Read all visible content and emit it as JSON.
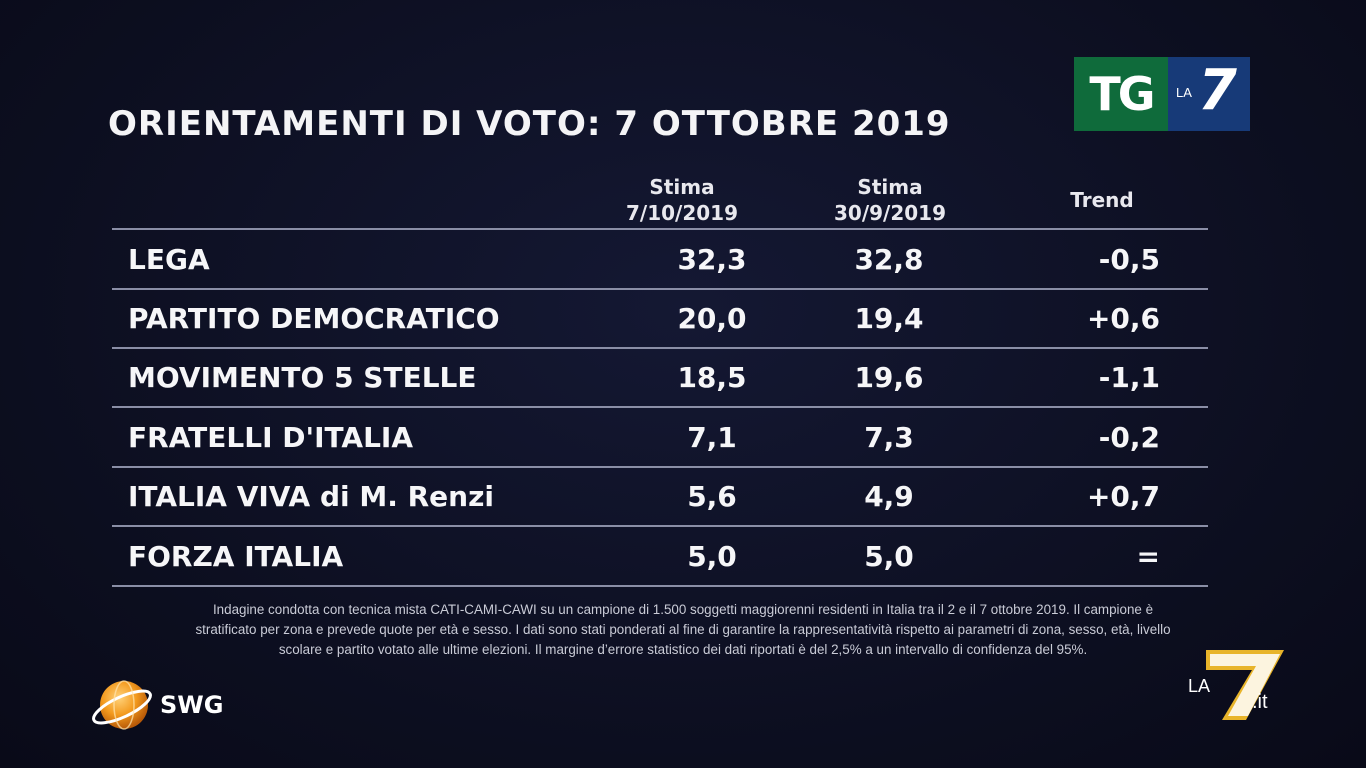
{
  "title": "ORIENTAMENTI DI VOTO: 7 OTTOBRE 2019",
  "logo": {
    "tg_text": "TG",
    "la_text": "LA",
    "seven_text": "7",
    "colors": {
      "tg_green": "#0f6b3b",
      "la7_blue": "#173a78"
    }
  },
  "chart_data": {
    "type": "table",
    "columns": [
      {
        "line1": "Stima",
        "line2": "7/10/2019"
      },
      {
        "line1": "Stima",
        "line2": "30/9/2019"
      },
      {
        "line1": "Trend",
        "line2": ""
      }
    ],
    "rows": [
      {
        "party": "LEGA",
        "v1": "32,3",
        "v2": "32,8",
        "trend": "-0,5"
      },
      {
        "party": "PARTITO DEMOCRATICO",
        "v1": "20,0",
        "v2": "19,4",
        "trend": "+0,6"
      },
      {
        "party": "MOVIMENTO 5 STELLE",
        "v1": "18,5",
        "v2": "19,6",
        "trend": "-1,1"
      },
      {
        "party": "FRATELLI D'ITALIA",
        "v1": "7,1",
        "v2": "7,3",
        "trend": "-0,2"
      },
      {
        "party": "ITALIA VIVA di M. Renzi",
        "v1": "5,6",
        "v2": "4,9",
        "trend": "+0,7"
      },
      {
        "party": "FORZA ITALIA",
        "v1": "5,0",
        "v2": "5,0",
        "trend": "="
      }
    ]
  },
  "footnote": {
    "line1": "Indagine condotta con tecnica mista CATI-CAMI-CAWI su un campione di 1.500 soggetti maggiorenni residenti in Italia tra il 2 e il 7 ottobre 2019. Il campione è",
    "line2": "stratificato per zona e prevede quote per età e sesso. I dati sono stati ponderati al fine di garantire la rappresentatività rispetto ai parametri di zona, sesso, età, livello",
    "line3": "scolare e partito votato alle ultime elezioni. Il margine d’errore statistico dei dati riportati è del 2,5% a un intervallo di confidenza del 95%."
  },
  "source": {
    "name": "SWG",
    "icon": "globe-icon",
    "colors": {
      "orange": "#f39a1e"
    }
  },
  "watermark": {
    "la_text": "LA",
    "seven_text": "7",
    "it_text": ".it",
    "colors": {
      "gold": "#e8b42a"
    }
  }
}
